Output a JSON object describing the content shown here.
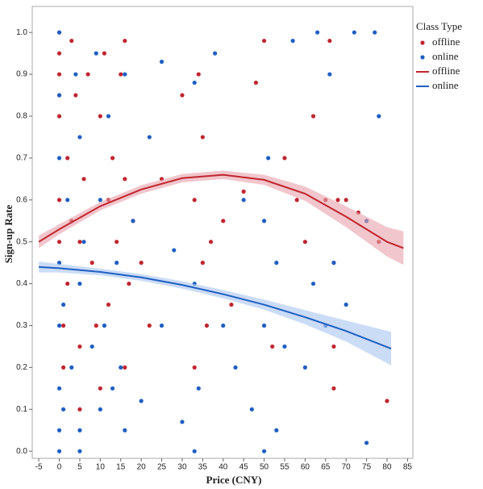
{
  "chart_data": {
    "type": "scatter",
    "x_label": "Price (CNY)",
    "y_label": "Sign-up Rate",
    "legend_title": "Class Type",
    "legend_position": "right",
    "xlim": [
      -6.6,
      86.3
    ],
    "ylim": [
      -0.017,
      1.062
    ],
    "xticks": [
      -5,
      0,
      5,
      10,
      15,
      20,
      25,
      30,
      35,
      40,
      45,
      50,
      55,
      60,
      65,
      70,
      75,
      80,
      85
    ],
    "yticks": [
      {
        "value": 0,
        "label": "0.0"
      },
      0.1,
      0.2,
      0.3,
      0.4,
      0.5,
      0.6,
      0.7,
      0.8,
      0.9,
      {
        "value": 1,
        "label": "1.0"
      }
    ],
    "series": [
      {
        "name": "offline",
        "mode": "markers",
        "color": "#c0262f",
        "x": [
          0,
          0,
          0,
          0,
          0,
          0,
          0,
          1,
          1,
          2,
          2,
          3,
          3,
          4,
          5,
          5,
          5,
          6,
          7,
          8,
          9,
          10,
          10,
          11,
          12,
          12,
          13,
          14,
          15,
          16,
          16,
          16,
          17,
          18,
          20,
          22,
          25,
          30,
          33,
          33,
          34,
          35,
          35,
          36,
          37,
          40,
          42,
          45,
          48,
          50,
          52,
          55,
          58,
          60,
          62,
          65,
          66,
          67,
          67,
          67,
          68,
          70,
          73,
          75,
          78,
          80
        ],
        "values": [
          1.0,
          0.95,
          0.9,
          0.85,
          0.8,
          0.6,
          0.5,
          0.3,
          0.2,
          0.7,
          0.4,
          0.98,
          0.55,
          0.85,
          0.5,
          0.25,
          0.1,
          0.65,
          0.9,
          0.45,
          0.3,
          0.8,
          0.15,
          0.95,
          0.6,
          0.35,
          0.7,
          0.5,
          0.9,
          0.98,
          0.65,
          0.2,
          0.4,
          0.55,
          0.45,
          0.3,
          0.65,
          0.85,
          0.6,
          0.2,
          0.9,
          0.75,
          0.45,
          0.3,
          0.5,
          0.55,
          0.35,
          0.62,
          0.88,
          0.98,
          0.25,
          0.7,
          0.6,
          0.5,
          0.8,
          0.6,
          0.98,
          0.45,
          0.25,
          0.15,
          0.6,
          0.6,
          0.57,
          0.55,
          0.5,
          0.12
        ]
      },
      {
        "name": "online",
        "mode": "markers",
        "color": "#1f5fc2",
        "x": [
          0,
          0,
          0,
          0,
          0,
          0,
          0,
          0,
          1,
          1,
          2,
          3,
          4,
          5,
          5,
          5,
          5,
          6,
          8,
          9,
          10,
          10,
          11,
          12,
          13,
          14,
          15,
          16,
          16,
          18,
          20,
          22,
          25,
          25,
          28,
          30,
          33,
          33,
          33,
          34,
          38,
          40,
          43,
          45,
          47,
          50,
          50,
          50,
          51,
          53,
          53,
          55,
          57,
          60,
          62,
          63,
          65,
          66,
          67,
          70,
          72,
          75,
          75,
          77,
          78
        ],
        "values": [
          0.0,
          0.05,
          0.15,
          0.3,
          0.45,
          0.7,
          0.85,
          1.0,
          0.1,
          0.35,
          0.6,
          0.2,
          0.9,
          0.0,
          0.05,
          0.4,
          0.75,
          0.5,
          0.25,
          0.95,
          0.1,
          0.6,
          0.3,
          0.8,
          0.15,
          0.45,
          0.2,
          0.05,
          0.9,
          0.55,
          0.12,
          0.75,
          0.93,
          0.3,
          0.48,
          0.07,
          0.0,
          0.4,
          0.88,
          0.15,
          0.95,
          0.3,
          0.2,
          0.6,
          0.1,
          0.0,
          0.3,
          0.55,
          0.7,
          0.05,
          0.45,
          0.25,
          0.98,
          0.2,
          0.4,
          1.0,
          0.3,
          0.9,
          0.45,
          0.35,
          1.0,
          0.02,
          0.55,
          1.0,
          0.8
        ]
      },
      {
        "name": "offline",
        "mode": "line",
        "color": "#c0262f",
        "band_color": "#e8a0aa",
        "x": [
          -5,
          0,
          10,
          20,
          30,
          40,
          50,
          60,
          70,
          80,
          84
        ],
        "values": [
          0.5,
          0.53,
          0.585,
          0.625,
          0.652,
          0.66,
          0.648,
          0.615,
          0.56,
          0.5,
          0.485
        ],
        "lower": [
          0.485,
          0.518,
          0.575,
          0.615,
          0.642,
          0.65,
          0.636,
          0.598,
          0.535,
          0.465,
          0.445
        ],
        "upper": [
          0.515,
          0.542,
          0.595,
          0.635,
          0.662,
          0.67,
          0.66,
          0.632,
          0.585,
          0.535,
          0.525
        ]
      },
      {
        "name": "online",
        "mode": "line",
        "color": "#1f5fc2",
        "band_color": "#a9c4f0",
        "x": [
          -5,
          0,
          10,
          20,
          30,
          40,
          50,
          60,
          70,
          81
        ],
        "values": [
          0.44,
          0.437,
          0.428,
          0.415,
          0.397,
          0.375,
          0.35,
          0.32,
          0.287,
          0.245
        ],
        "lower": [
          0.427,
          0.427,
          0.42,
          0.407,
          0.388,
          0.365,
          0.338,
          0.303,
          0.262,
          0.205
        ],
        "upper": [
          0.453,
          0.447,
          0.436,
          0.423,
          0.406,
          0.385,
          0.362,
          0.337,
          0.312,
          0.285
        ]
      }
    ]
  }
}
